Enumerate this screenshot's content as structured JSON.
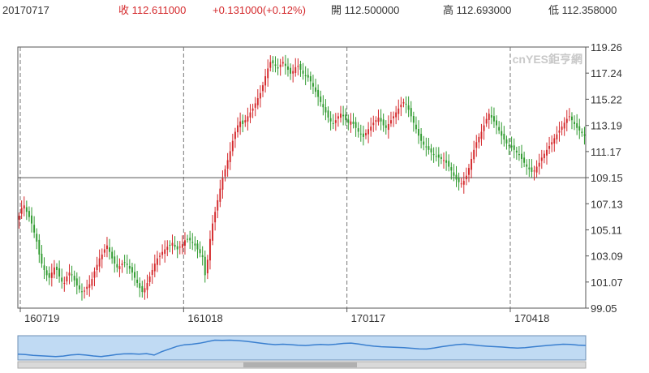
{
  "header": {
    "date": "20170717",
    "close_label": "收",
    "close_value": "112.611000",
    "change": "+0.131000(+0.12%)",
    "open_label": "開",
    "open_value": "112.500000",
    "high_label": "高",
    "high_value": "112.693000",
    "low_label": "低",
    "low_value": "112.358000"
  },
  "watermark": "cnYES鉅亨網",
  "colors": {
    "up": "#d4282b",
    "down": "#2e9a2e",
    "grid": "#777777",
    "navigator_fill": "#b9d6f2",
    "navigator_line": "#3a7fcf"
  },
  "chart_data": {
    "type": "candlestick",
    "title": "",
    "xlabel": "",
    "ylabel": "",
    "ylim": [
      99.05,
      119.26
    ],
    "y_ticks": [
      "119.26",
      "117.24",
      "115.22",
      "113.19",
      "111.17",
      "109.15",
      "107.13",
      "105.11",
      "103.09",
      "101.07",
      "99.05"
    ],
    "x_ticks": [
      "160719",
      "161018",
      "170117",
      "170418"
    ],
    "x_tick_index": [
      0,
      65,
      130,
      195
    ],
    "reference_line": 109.15,
    "grid": "dashed vertical at date ticks",
    "closes": [
      106.2,
      106.8,
      107.0,
      106.5,
      106.1,
      105.6,
      104.9,
      104.2,
      103.2,
      102.5,
      102.0,
      101.6,
      101.4,
      101.8,
      102.2,
      102.0,
      101.5,
      101.1,
      101.0,
      101.5,
      101.8,
      101.6,
      101.2,
      100.8,
      100.5,
      100.3,
      100.4,
      100.7,
      100.9,
      101.3,
      101.9,
      102.4,
      102.9,
      103.2,
      103.6,
      103.9,
      103.4,
      102.9,
      102.5,
      102.2,
      102.3,
      102.5,
      102.6,
      102.4,
      102.1,
      101.8,
      101.4,
      101.0,
      100.6,
      100.3,
      100.6,
      101.0,
      101.5,
      102.0,
      102.5,
      102.9,
      103.1,
      103.4,
      103.6,
      103.8,
      103.9,
      104.1,
      103.8,
      103.6,
      103.8,
      104.0,
      104.3,
      104.4,
      104.3,
      104.1,
      103.9,
      103.6,
      103.3,
      103.0,
      101.6,
      102.8,
      104.4,
      105.6,
      106.5,
      107.4,
      108.3,
      109.1,
      109.8,
      110.5,
      111.2,
      112.0,
      112.7,
      113.2,
      113.5,
      113.3,
      113.6,
      113.9,
      114.2,
      114.5,
      114.9,
      115.3,
      115.7,
      116.3,
      117.0,
      117.6,
      118.1,
      118.0,
      117.8,
      117.6,
      117.9,
      118.1,
      117.8,
      117.5,
      117.2,
      117.4,
      117.7,
      117.8,
      117.5,
      117.2,
      117.0,
      116.9,
      116.6,
      116.2,
      115.8,
      115.4,
      115.0,
      114.6,
      114.2,
      113.8,
      113.5,
      113.3,
      113.6,
      113.9,
      114.1,
      113.9,
      113.6,
      113.4,
      113.5,
      113.3,
      113.0,
      112.7,
      112.5,
      112.3,
      112.6,
      112.9,
      113.1,
      113.4,
      113.6,
      113.8,
      113.5,
      113.2,
      113.0,
      113.3,
      113.6,
      113.9,
      114.2,
      114.5,
      114.8,
      115.0,
      114.8,
      114.4,
      113.9,
      113.4,
      112.9,
      112.4,
      112.0,
      111.7,
      111.5,
      111.3,
      111.1,
      110.9,
      110.8,
      110.7,
      110.6,
      110.5,
      110.3,
      110.0,
      109.7,
      109.3,
      109.0,
      108.8,
      108.7,
      108.9,
      109.3,
      109.9,
      110.6,
      111.3,
      111.9,
      112.3,
      112.7,
      113.2,
      113.7,
      114.1,
      113.8,
      113.5,
      113.2,
      112.8,
      112.4,
      112.1,
      111.8,
      111.6,
      111.5,
      111.3,
      111.1,
      110.9,
      110.6,
      110.3,
      110.0,
      109.8,
      109.6,
      109.7,
      110.0,
      110.3,
      110.7,
      111.0,
      111.3,
      111.6,
      111.9,
      112.2,
      112.5,
      112.8,
      113.1,
      113.4,
      113.7,
      113.9,
      113.6,
      113.3,
      113.0,
      112.8,
      112.6,
      112.4
    ],
    "navigator": {
      "values": [
        103.5,
        103.0,
        102.2,
        101.8,
        101.4,
        101.0,
        101.5,
        102.6,
        103.2,
        102.5,
        101.6,
        101.0,
        101.9,
        103.1,
        103.8,
        103.9,
        103.5,
        104.0,
        102.5,
        106.0,
        108.8,
        111.5,
        113.2,
        113.8,
        114.8,
        116.4,
        118.0,
        117.8,
        118.0,
        117.6,
        117.0,
        116.0,
        115.0,
        114.0,
        113.4,
        113.8,
        113.4,
        112.8,
        112.4,
        113.0,
        113.6,
        113.2,
        113.8,
        114.6,
        115.0,
        114.0,
        112.8,
        111.8,
        111.2,
        110.8,
        110.5,
        110.2,
        109.6,
        108.9,
        108.8,
        109.9,
        111.3,
        112.3,
        113.4,
        113.9,
        113.2,
        112.3,
        111.7,
        111.3,
        110.8,
        110.2,
        109.8,
        110.2,
        111.0,
        111.8,
        112.5,
        113.1,
        113.8,
        113.5,
        112.9,
        112.5
      ],
      "ylim": [
        99.05,
        119.26
      ]
    }
  }
}
